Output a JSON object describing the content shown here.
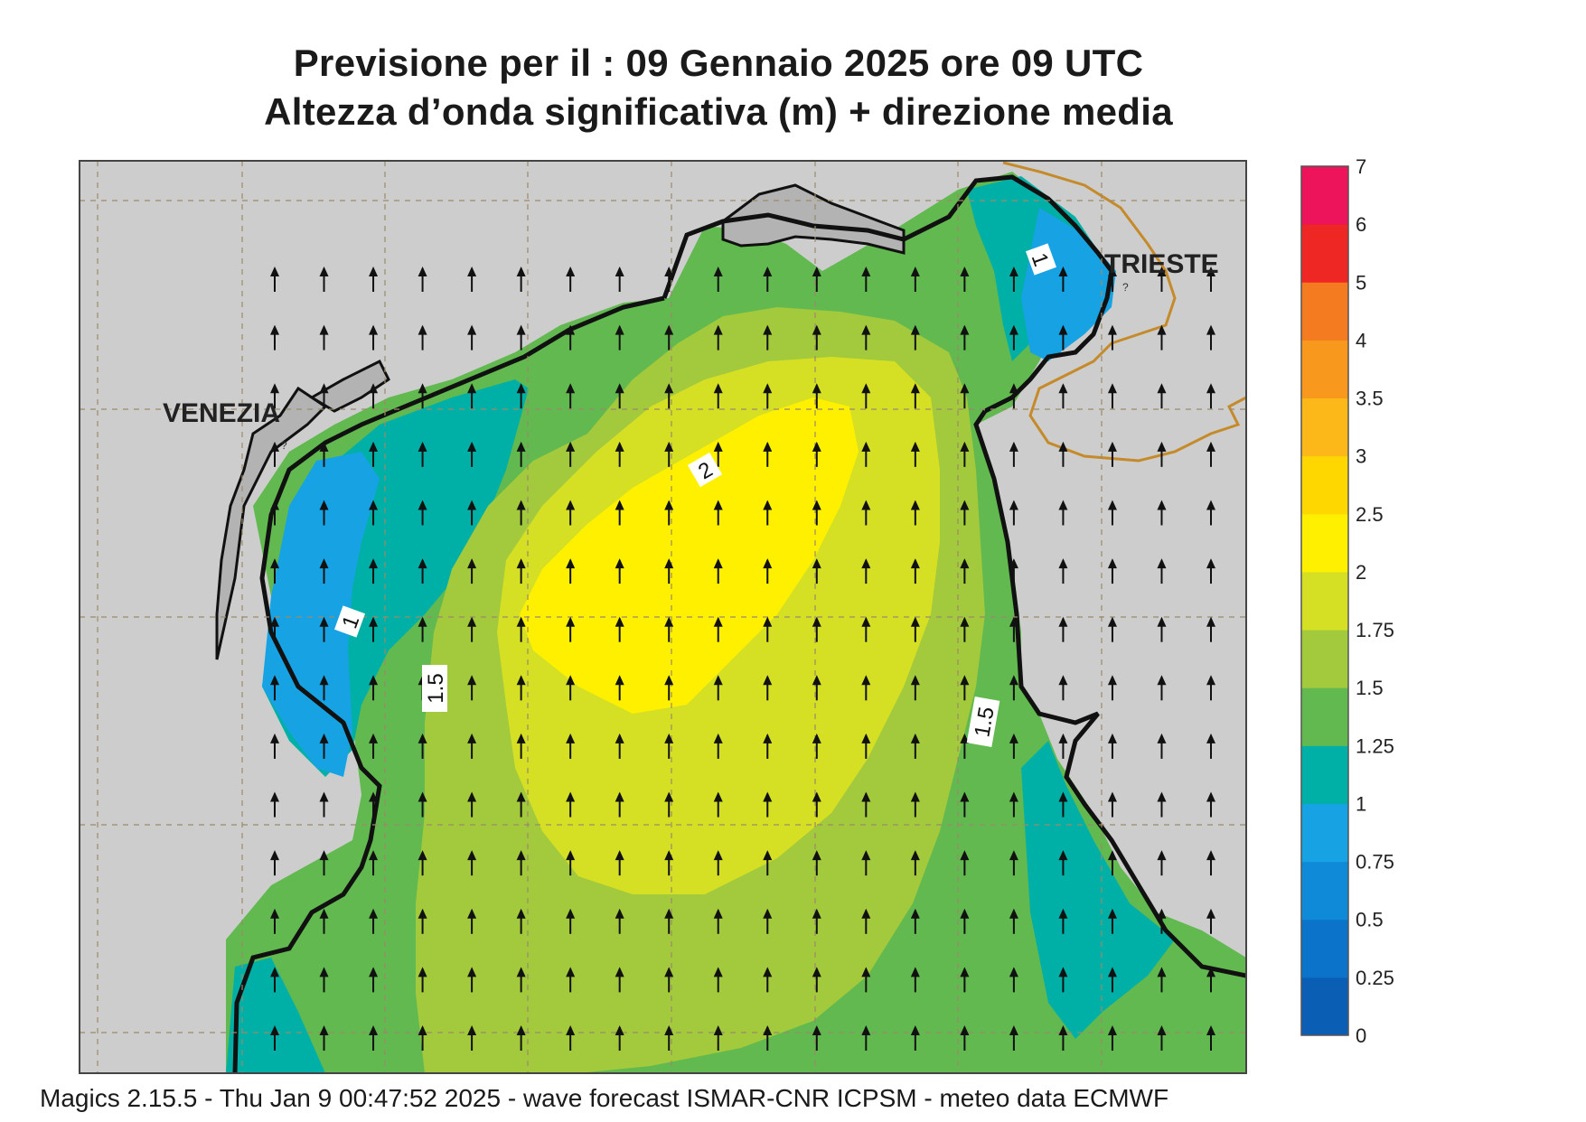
{
  "header": {
    "title_line1": "Previsione per il  :  09  Gennaio  2025   ore 09 UTC",
    "title_line2": "Altezza d’onda significativa (m) + direzione media"
  },
  "places": {
    "venezia": "VENEZIA",
    "trieste": "TRIESTE",
    "question_marks": "?"
  },
  "contour_labels": {
    "c1_north": "1",
    "c1_west": "1",
    "c15_west": "1.5",
    "c15_east": "1.5",
    "c2": "2"
  },
  "legend": {
    "ticks": [
      "0",
      "0.25",
      "0.5",
      "0.75",
      "1",
      "1.25",
      "1.5",
      "1.75",
      "2",
      "2.5",
      "3",
      "3.5",
      "4",
      "5",
      "6",
      "7"
    ],
    "colors": [
      "#0a5fb5",
      "#0b73c9",
      "#0f8ad8",
      "#17a3e3",
      "#00b0a6",
      "#62b94f",
      "#a3c93c",
      "#d5e024",
      "#fff000",
      "#ffd700",
      "#fbb818",
      "#f8981d",
      "#f47b20",
      "#ee2624",
      "#ed145b"
    ]
  },
  "map_colors": {
    "land": "#cdcdcd",
    "coast_land": "#b3b3b3",
    "border": "#c58a2a",
    "grid": "#9a8a6a"
  },
  "wave_direction": "north",
  "footer": {
    "text": "Magics 2.15.5 - Thu Jan  9 00:47:52 2025 - wave forecast  ISMAR-CNR  ICPSM - meteo data   ECMWF"
  }
}
